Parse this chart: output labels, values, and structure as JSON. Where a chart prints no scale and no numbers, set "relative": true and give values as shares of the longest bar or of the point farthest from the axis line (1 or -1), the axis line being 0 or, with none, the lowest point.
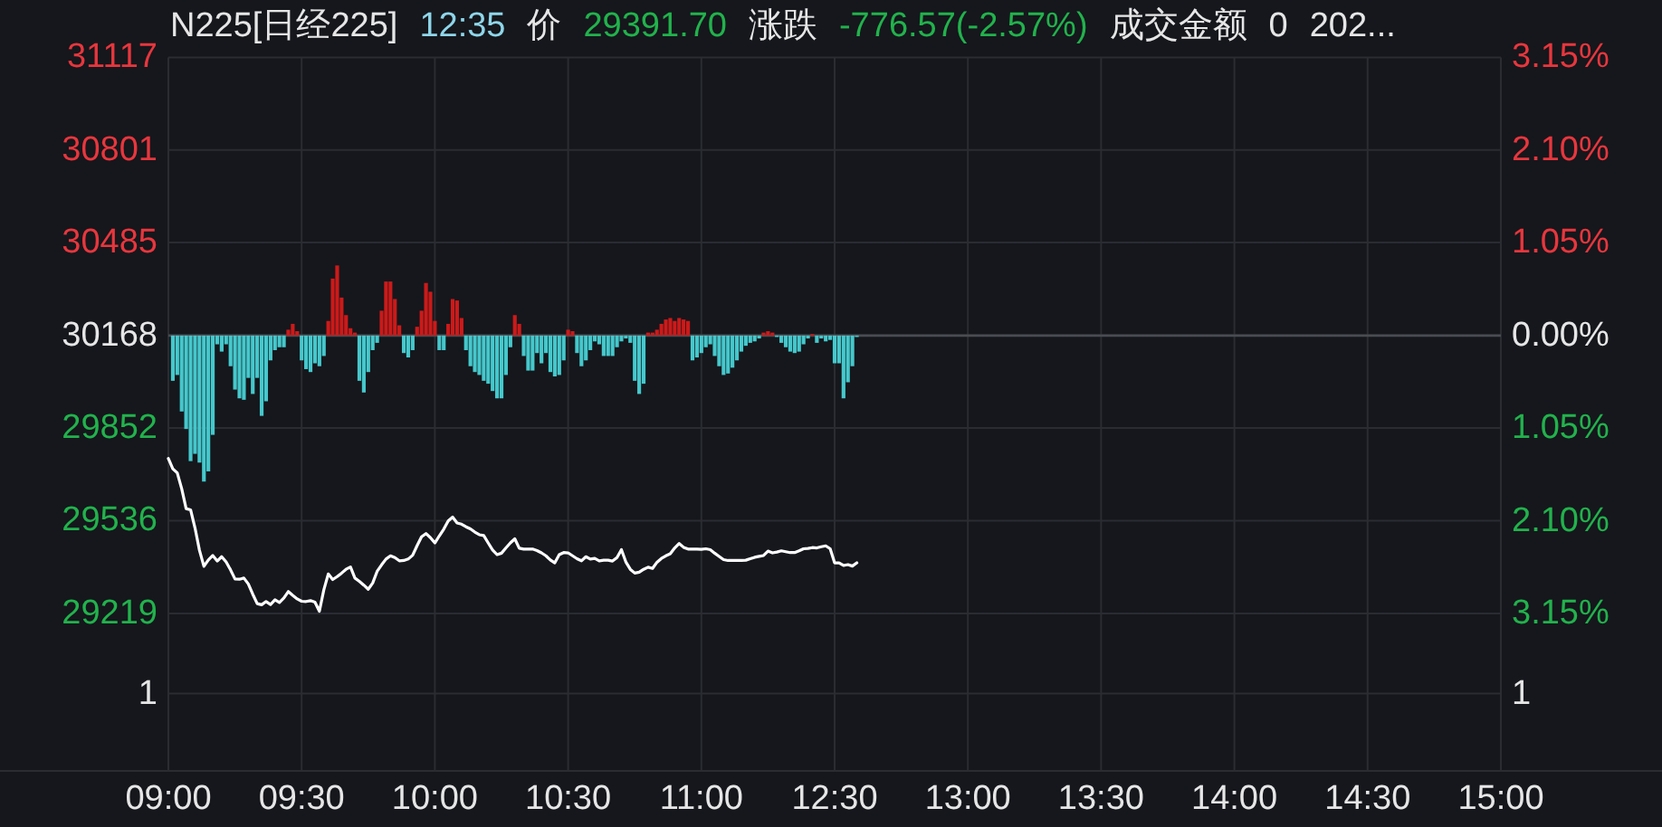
{
  "chart_data": [
    {
      "type": "line",
      "title": "N225[日经225]",
      "annotations": [
        "12:35",
        "价",
        "29391.70",
        "涨跌",
        "-776.57(-2.57%)",
        "成交金额",
        "0",
        "202...",
        "1",
        "1"
      ],
      "categories": [
        "09:00",
        null,
        null,
        null,
        null,
        null,
        null,
        null,
        null,
        null,
        null,
        null,
        null,
        null,
        null,
        null,
        null,
        null,
        null,
        null,
        null,
        null,
        null,
        null,
        null,
        null,
        null,
        null,
        null,
        null,
        "09:30",
        null,
        null,
        null,
        null,
        null,
        null,
        null,
        null,
        null,
        null,
        null,
        null,
        null,
        null,
        null,
        null,
        null,
        null,
        null,
        null,
        null,
        null,
        null,
        null,
        null,
        null,
        null,
        null,
        null,
        "10:00",
        null,
        null,
        null,
        null,
        null,
        null,
        null,
        null,
        null,
        null,
        null,
        null,
        null,
        null,
        null,
        null,
        null,
        null,
        null,
        null,
        null,
        null,
        null,
        null,
        null,
        null,
        null,
        null,
        null,
        "10:30",
        null,
        null,
        null,
        null,
        null,
        null,
        null,
        null,
        null,
        null,
        null,
        null,
        null,
        null,
        null,
        null,
        null,
        null,
        null,
        null,
        null,
        null,
        null,
        null,
        null,
        null,
        null,
        null,
        null,
        "11:00",
        null,
        null,
        null,
        null,
        null,
        null,
        null,
        null,
        null,
        null,
        null,
        null,
        null,
        null,
        null,
        null,
        null,
        null,
        null,
        null,
        null,
        null,
        null,
        null,
        null,
        null,
        null,
        null,
        null,
        "12:30",
        null,
        null,
        null,
        null,
        null,
        null,
        null,
        null,
        null,
        null,
        null,
        null,
        null,
        null,
        null,
        null,
        null,
        null,
        null,
        null,
        null,
        null,
        null,
        null,
        null,
        null,
        null,
        null,
        null,
        "13:00",
        null,
        null,
        null,
        null,
        null,
        null,
        null,
        null,
        null,
        null,
        null,
        null,
        null,
        null,
        null,
        null,
        null,
        null,
        null,
        null,
        null,
        null,
        null,
        null,
        null,
        null,
        null,
        null,
        null,
        "13:30",
        null,
        null,
        null,
        null,
        null,
        null,
        null,
        null,
        null,
        null,
        null,
        null,
        null,
        null,
        null,
        null,
        null,
        null,
        null,
        null,
        null,
        null,
        null,
        null,
        null,
        null,
        null,
        null,
        null,
        "14:00",
        null,
        null,
        null,
        null,
        null,
        null,
        null,
        null,
        null,
        null,
        null,
        null,
        null,
        null,
        null,
        null,
        null,
        null,
        null,
        null,
        null,
        null,
        null,
        null,
        null,
        null,
        null,
        null,
        null,
        "14:30",
        null,
        null,
        null,
        null,
        null,
        null,
        null,
        null,
        null,
        null,
        null,
        null,
        null,
        null,
        null,
        null,
        null,
        null,
        null,
        null,
        null,
        null,
        null,
        null,
        null,
        null,
        null,
        null,
        null,
        "15:00"
      ],
      "ylim": [
        28682,
        31117
      ],
      "yticks": [
        31117,
        30801,
        30485,
        30168,
        29852,
        29536,
        29219
      ],
      "y2lim": [
        -4.93,
        3.15
      ],
      "y2ticks": [
        {
          "value": 3.15,
          "label": "3.15%"
        },
        {
          "value": 2.1,
          "label": "2.10%"
        },
        {
          "value": 1.05,
          "label": "1.05%"
        },
        {
          "value": 0,
          "label": "0.00%"
        },
        {
          "value": -1.05,
          "label": "1.05%"
        },
        {
          "value": -2.1,
          "label": "2.10%"
        },
        {
          "value": -3.15,
          "label": "3.15%"
        }
      ],
      "grid": true,
      "ref_lines": [
        {
          "axis": "y2",
          "value": 0,
          "color": "#4a4c52"
        }
      ],
      "series": [
        {
          "color": "#ffffff",
          "values": [
            29748,
            29713,
            29699,
            29645,
            29577,
            29573,
            29511,
            29435,
            29380,
            29402,
            29417,
            29398,
            29413,
            29395,
            29368,
            29337,
            29336,
            29340,
            29320,
            29285,
            29253,
            29249,
            29260,
            29250,
            29266,
            29257,
            29272,
            29294,
            29281,
            29269,
            29261,
            29260,
            29263,
            29258,
            29227,
            29300,
            29354,
            29335,
            29345,
            29357,
            29370,
            29378,
            29340,
            29329,
            29316,
            29302,
            29323,
            29363,
            29385,
            29405,
            29416,
            29410,
            29399,
            29400,
            29405,
            29418,
            29451,
            29481,
            29492,
            29478,
            29460,
            29484,
            29507,
            29535,
            29548,
            29528,
            29524,
            29515,
            29508,
            29497,
            29488,
            29485,
            29460,
            29436,
            29420,
            29425,
            29443,
            29460,
            29474,
            29442,
            29439,
            29439,
            29439,
            29434,
            29426,
            29416,
            29402,
            29392,
            29420,
            29427,
            29426,
            29416,
            29406,
            29399,
            29413,
            29405,
            29407,
            29399,
            29401,
            29401,
            29398,
            29410,
            29437,
            29395,
            29370,
            29357,
            29360,
            29370,
            29377,
            29373,
            29394,
            29407,
            29416,
            29423,
            29443,
            29458,
            29445,
            29439,
            29439,
            29439,
            29438,
            29440,
            29437,
            29425,
            29414,
            29403,
            29400,
            29400,
            29400,
            29400,
            29401,
            29406,
            29411,
            29414,
            29417,
            29432,
            29426,
            29429,
            29433,
            29430,
            29427,
            29427,
            29433,
            29440,
            29441,
            29444,
            29443,
            29447,
            29450,
            29440,
            29392,
            29392,
            29383,
            29386,
            29381,
            29392,
            null,
            null,
            null,
            null,
            null,
            null,
            null,
            null,
            null,
            null,
            null,
            null,
            null,
            null,
            null,
            null,
            null,
            null,
            null,
            null,
            null,
            null,
            null,
            null,
            null,
            null,
            null,
            null,
            null,
            null,
            null,
            null,
            null,
            null,
            null,
            null,
            null,
            null,
            null,
            null,
            null,
            null,
            null,
            null,
            null,
            null,
            null,
            null,
            null,
            null,
            null,
            null,
            null,
            null,
            null,
            null,
            null,
            null,
            null,
            null,
            null,
            null,
            null,
            null,
            null,
            null,
            null,
            null,
            null,
            null,
            null,
            null,
            null,
            null,
            null,
            null,
            null,
            null,
            null,
            null,
            null,
            null,
            null,
            null,
            null,
            null,
            null,
            null,
            null,
            null,
            null,
            null,
            null,
            null,
            null,
            null,
            null,
            null,
            null,
            null,
            null,
            null,
            null,
            null,
            null,
            null,
            null,
            null,
            null,
            null,
            null,
            null,
            null,
            null,
            null,
            null,
            null,
            null,
            null,
            null,
            null,
            null,
            null,
            null,
            null,
            null,
            null,
            null,
            null,
            null,
            null,
            null,
            null,
            null,
            null,
            null,
            null,
            null,
            null,
            null,
            null,
            null,
            null,
            null,
            null
          ]
        }
      ]
    },
    {
      "type": "bar",
      "relative": true,
      "categories": [
        null,
        null,
        null,
        null,
        null,
        null,
        null,
        null,
        null,
        null,
        null,
        null,
        null,
        null,
        null,
        null,
        null,
        null,
        null,
        null,
        null,
        null,
        null,
        null,
        null,
        null,
        null,
        null,
        null,
        null,
        null,
        null,
        null,
        null,
        null,
        null,
        null,
        null,
        null,
        null,
        null,
        null,
        null,
        null,
        null,
        null,
        null,
        null,
        null,
        null,
        null,
        null,
        null,
        null,
        null,
        null,
        null,
        null,
        null,
        null,
        null,
        null,
        null,
        null,
        null,
        null,
        null,
        null,
        null,
        null,
        null,
        null,
        null,
        null,
        null,
        null,
        null,
        null,
        null,
        null,
        null,
        null,
        null,
        null,
        null,
        null,
        null,
        null,
        null,
        null,
        null,
        null,
        null,
        null,
        null,
        null,
        null,
        null,
        null,
        null,
        null,
        null,
        null,
        null,
        null,
        null,
        null,
        null,
        null,
        null,
        null,
        null,
        null,
        null,
        null,
        null,
        null,
        null,
        null,
        null,
        null,
        null,
        null,
        null,
        null,
        null,
        null,
        null,
        null,
        null,
        null,
        null,
        null,
        null,
        null,
        null,
        null,
        null,
        null,
        null,
        null,
        null,
        null,
        null,
        null,
        null,
        null,
        null,
        null,
        null,
        null,
        null,
        null,
        null,
        null,
        null,
        null,
        null,
        null,
        null,
        null,
        null,
        null,
        null,
        null,
        null,
        null,
        null,
        null,
        null,
        null,
        null,
        null,
        null,
        null,
        null,
        null,
        null,
        null,
        null,
        null,
        null,
        null,
        null,
        null,
        null,
        null,
        null,
        null,
        null,
        null,
        null,
        null,
        null,
        null,
        null,
        null,
        null,
        null,
        null,
        null,
        null,
        null,
        null,
        null,
        null,
        null,
        null,
        null,
        null,
        null,
        null,
        null,
        null,
        null,
        null,
        null,
        null,
        null,
        null,
        null,
        null,
        null,
        null,
        null,
        null,
        null,
        null,
        null,
        null,
        null,
        null,
        null,
        null,
        null,
        null,
        null,
        null,
        null,
        null,
        null,
        null,
        null,
        null,
        null,
        null,
        null,
        null,
        null,
        null,
        null,
        null,
        null,
        null,
        null,
        null,
        null,
        null,
        null,
        null,
        null,
        null,
        null,
        null,
        null,
        null,
        null,
        null,
        null,
        null,
        null,
        null,
        null,
        null,
        null,
        null,
        null,
        null,
        null,
        null,
        null,
        null,
        null,
        null,
        null,
        null,
        null,
        null,
        null,
        null,
        null,
        null,
        null,
        null,
        null,
        null,
        null,
        null,
        null,
        null,
        null
      ],
      "values": [
        null,
        -0.31,
        -0.27,
        -0.52,
        -0.64,
        -0.86,
        -0.81,
        -0.87,
        -1,
        -0.93,
        -0.68,
        -0.06,
        -0.11,
        -0.06,
        -0.21,
        -0.37,
        -0.43,
        -0.44,
        -0.29,
        -0.4,
        -0.29,
        -0.55,
        -0.45,
        -0.17,
        -0.1,
        -0.08,
        -0.08,
        0.04,
        0.08,
        0.03,
        -0.17,
        -0.23,
        -0.25,
        -0.19,
        -0.21,
        -0.14,
        0.1,
        0.39,
        0.48,
        0.26,
        0.14,
        0.05,
        0.02,
        -0.31,
        -0.39,
        -0.25,
        -0.1,
        -0.05,
        0.17,
        0.37,
        0.37,
        0.25,
        0.07,
        -0.12,
        -0.15,
        -0.1,
        0.06,
        0.17,
        0.36,
        0.3,
        0.1,
        -0.1,
        -0.1,
        0.08,
        0.25,
        0.24,
        0.12,
        -0.1,
        -0.21,
        -0.25,
        -0.27,
        -0.31,
        -0.33,
        -0.38,
        -0.43,
        -0.43,
        -0.27,
        -0.08,
        0.14,
        0.08,
        -0.14,
        -0.24,
        -0.24,
        -0.12,
        -0.19,
        -0.12,
        -0.25,
        -0.28,
        -0.27,
        -0.17,
        0.04,
        0.03,
        -0.12,
        -0.21,
        -0.17,
        -0.1,
        -0.04,
        -0.06,
        -0.14,
        -0.14,
        -0.14,
        -0.08,
        -0.04,
        -0.02,
        -0.05,
        -0.31,
        -0.4,
        -0.33,
        0.02,
        0.02,
        0.04,
        0.08,
        0.11,
        0.12,
        0.1,
        0.12,
        0.11,
        0.1,
        -0.17,
        -0.15,
        -0.12,
        -0.08,
        -0.06,
        -0.14,
        -0.21,
        -0.27,
        -0.26,
        -0.22,
        -0.17,
        -0.11,
        -0.07,
        -0.05,
        -0.04,
        -0.02,
        0.02,
        0.03,
        0.02,
        -0.01,
        -0.05,
        -0.08,
        -0.11,
        -0.12,
        -0.11,
        -0.06,
        -0.02,
        0.01,
        -0.05,
        -0.02,
        -0.04,
        -0.03,
        -0.19,
        -0.19,
        -0.43,
        -0.32,
        -0.21,
        -0.01,
        null,
        null,
        null,
        null,
        null,
        null,
        null,
        null,
        null,
        null,
        null,
        null,
        null,
        null,
        null,
        null,
        null,
        null,
        null,
        null,
        null,
        null,
        null,
        null,
        null,
        null,
        null,
        null,
        null,
        null,
        null,
        null,
        null,
        null,
        null,
        null,
        null,
        null,
        null,
        null,
        null,
        null,
        null,
        null,
        null,
        null,
        null,
        null,
        null,
        null,
        null,
        null,
        null,
        null,
        null,
        null,
        null,
        null,
        null,
        null,
        null,
        null,
        null,
        null,
        null,
        null,
        null,
        null,
        null,
        null,
        null,
        null,
        null,
        null,
        null,
        null,
        null,
        null,
        null,
        null,
        null,
        null,
        null,
        null,
        null,
        null,
        null,
        null,
        null,
        null,
        null,
        null,
        null,
        null,
        null,
        null,
        null,
        null,
        null,
        null,
        null,
        null,
        null,
        null,
        null,
        null,
        null,
        null,
        null,
        null,
        null,
        null,
        null,
        null,
        null,
        null,
        null,
        null,
        null,
        null,
        null,
        null,
        null,
        null,
        null,
        null,
        null,
        null,
        null,
        null,
        null,
        null,
        null,
        null,
        null,
        null,
        null,
        null,
        null,
        null,
        null,
        null,
        null,
        null,
        null
      ],
      "colors": [
        null,
        "#45c8cc",
        "#45c8cc",
        "#45c8cc",
        "#45c8cc",
        "#45c8cc",
        "#45c8cc",
        "#45c8cc",
        "#45c8cc",
        "#45c8cc",
        "#45c8cc",
        "#45c8cc",
        "#45c8cc",
        "#45c8cc",
        "#45c8cc",
        "#45c8cc",
        "#45c8cc",
        "#45c8cc",
        "#45c8cc",
        "#45c8cc",
        "#45c8cc",
        "#45c8cc",
        "#45c8cc",
        "#45c8cc",
        "#45c8cc",
        "#45c8cc",
        "#45c8cc",
        "#cc1a1a",
        "#cc1a1a",
        "#cc1a1a",
        "#45c8cc",
        "#45c8cc",
        "#45c8cc",
        "#45c8cc",
        "#45c8cc",
        "#45c8cc",
        "#cc1a1a",
        "#cc1a1a",
        "#cc1a1a",
        "#cc1a1a",
        "#cc1a1a",
        "#cc1a1a",
        "#cc1a1a",
        "#45c8cc",
        "#45c8cc",
        "#45c8cc",
        "#45c8cc",
        "#45c8cc",
        "#cc1a1a",
        "#cc1a1a",
        "#cc1a1a",
        "#cc1a1a",
        "#cc1a1a",
        "#45c8cc",
        "#45c8cc",
        "#45c8cc",
        "#cc1a1a",
        "#cc1a1a",
        "#cc1a1a",
        "#cc1a1a",
        "#cc1a1a",
        "#45c8cc",
        "#45c8cc",
        "#cc1a1a",
        "#cc1a1a",
        "#cc1a1a",
        "#cc1a1a",
        "#45c8cc",
        "#45c8cc",
        "#45c8cc",
        "#45c8cc",
        "#45c8cc",
        "#45c8cc",
        "#45c8cc",
        "#45c8cc",
        "#45c8cc",
        "#45c8cc",
        "#45c8cc",
        "#cc1a1a",
        "#cc1a1a",
        "#45c8cc",
        "#45c8cc",
        "#45c8cc",
        "#45c8cc",
        "#45c8cc",
        "#45c8cc",
        "#45c8cc",
        "#45c8cc",
        "#45c8cc",
        "#45c8cc",
        "#cc1a1a",
        "#cc1a1a",
        "#45c8cc",
        "#45c8cc",
        "#45c8cc",
        "#45c8cc",
        "#45c8cc",
        "#45c8cc",
        "#45c8cc",
        "#45c8cc",
        "#45c8cc",
        "#45c8cc",
        "#45c8cc",
        "#45c8cc",
        "#45c8cc",
        "#45c8cc",
        "#45c8cc",
        "#45c8cc",
        "#cc1a1a",
        "#cc1a1a",
        "#cc1a1a",
        "#cc1a1a",
        "#cc1a1a",
        "#cc1a1a",
        "#cc1a1a",
        "#cc1a1a",
        "#cc1a1a",
        "#cc1a1a",
        "#45c8cc",
        "#45c8cc",
        "#45c8cc",
        "#45c8cc",
        "#45c8cc",
        "#45c8cc",
        "#45c8cc",
        "#45c8cc",
        "#45c8cc",
        "#45c8cc",
        "#45c8cc",
        "#45c8cc",
        "#45c8cc",
        "#45c8cc",
        "#45c8cc",
        "#45c8cc",
        "#cc1a1a",
        "#cc1a1a",
        "#cc1a1a",
        "#45c8cc",
        "#45c8cc",
        "#45c8cc",
        "#45c8cc",
        "#45c8cc",
        "#45c8cc",
        "#45c8cc",
        "#45c8cc",
        "#cc1a1a",
        "#45c8cc",
        "#45c8cc",
        "#45c8cc",
        "#45c8cc",
        "#45c8cc",
        "#45c8cc",
        "#45c8cc",
        "#45c8cc",
        "#45c8cc",
        "#45c8cc",
        null,
        null,
        null,
        null,
        null,
        null,
        null,
        null,
        null,
        null,
        null,
        null,
        null,
        null,
        null,
        null,
        null,
        null,
        null,
        null,
        null,
        null,
        null,
        null,
        null,
        null,
        null,
        null,
        null,
        null,
        null,
        null,
        null,
        null,
        null,
        null,
        null,
        null,
        null,
        null,
        null,
        null,
        null,
        null,
        null,
        null,
        null,
        null,
        null,
        null,
        null,
        null,
        null,
        null,
        null,
        null,
        null,
        null,
        null,
        null,
        null,
        null,
        null,
        null,
        null,
        null,
        null,
        null,
        null,
        null,
        null,
        null,
        null,
        null,
        null,
        null,
        null,
        null,
        null,
        null,
        null,
        null,
        null,
        null,
        null,
        null,
        null,
        null,
        null,
        null,
        null,
        null,
        null,
        null,
        null,
        null,
        null,
        null,
        null,
        null,
        null,
        null,
        null,
        null,
        null,
        null,
        null,
        null,
        null,
        null,
        null,
        null,
        null,
        null,
        null,
        null,
        null,
        null,
        null,
        null,
        null,
        null,
        null,
        null,
        null,
        null,
        null,
        null,
        null,
        null,
        null,
        null,
        null,
        null,
        null,
        null,
        null,
        null,
        null,
        null,
        null,
        null,
        null,
        null,
        null
      ]
    }
  ]
}
